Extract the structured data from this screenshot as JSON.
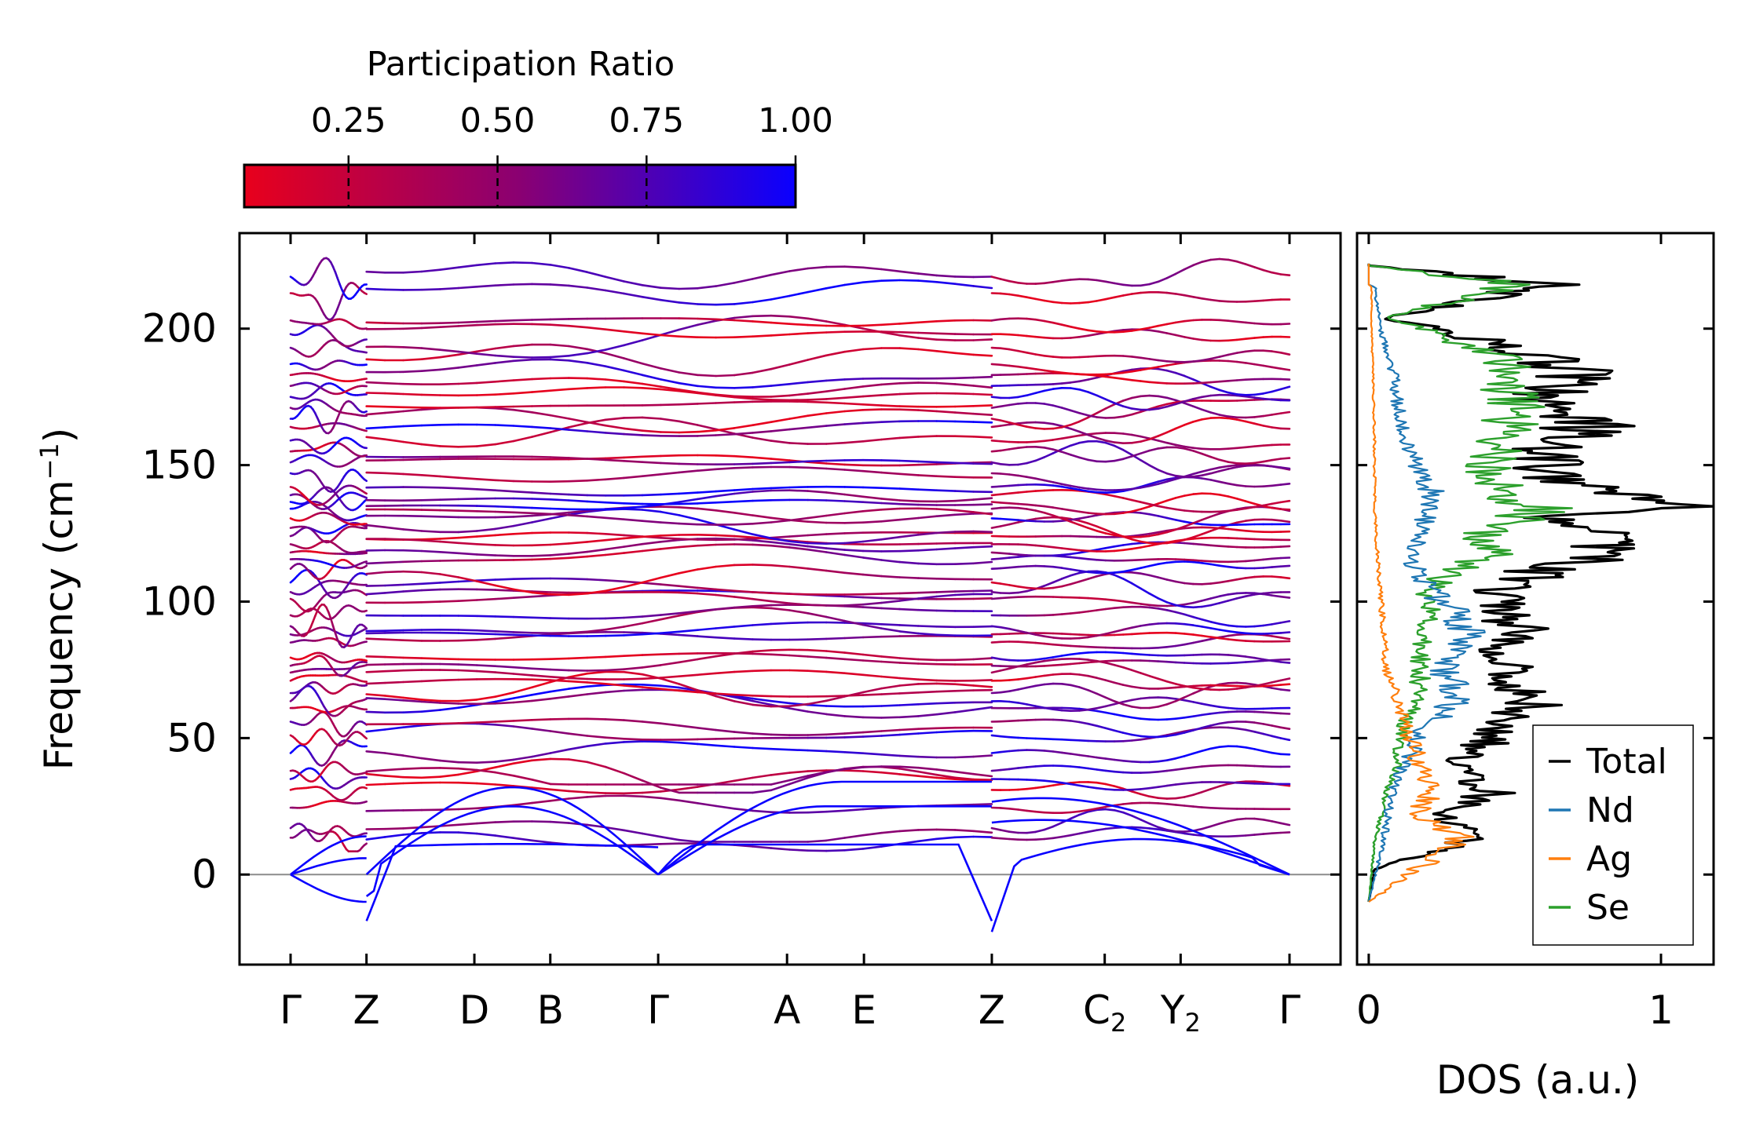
{
  "colorbar": {
    "title": "Participation Ratio",
    "ticks": [
      "0.25",
      "0.50",
      "0.75",
      "1.00"
    ],
    "tick_values": [
      0.25,
      0.5,
      0.75,
      1.0
    ],
    "range": [
      0.075,
      1.0
    ],
    "color_low": "#e8001c",
    "color_mid": "#8a0072",
    "color_high": "#0a00ff"
  },
  "chart_data": [
    {
      "type": "line",
      "subtype": "phonon-band-structure",
      "title": "",
      "ylabel": "Frequency (cm",
      "ylabel_sup": "−1",
      "ylabel_close": ")",
      "ylim": [
        -33,
        235
      ],
      "yticks": [
        0,
        50,
        100,
        150,
        200
      ],
      "ytick_labels": [
        "0",
        "50",
        "100",
        "150",
        "200"
      ],
      "zero_line": 0,
      "kpath_labels": [
        "Γ",
        "Z",
        "D",
        "B",
        "Γ",
        "A",
        "E",
        "Z",
        "C",
        "Y",
        "Γ"
      ],
      "kpath_subscripts": [
        "",
        "",
        "",
        "",
        "",
        "",
        "",
        "",
        "2",
        "2",
        ""
      ],
      "kpath_positions": [
        0,
        0.76,
        1.84,
        2.6,
        3.68,
        4.97,
        5.74,
        7.02,
        8.15,
        8.91,
        10.0
      ],
      "segments": [
        [
          0,
          0.76
        ],
        [
          0.76,
          7.02
        ],
        [
          7.02,
          10.0
        ]
      ],
      "bands_at_gamma": [
        0,
        0,
        0,
        13.5,
        17,
        24.5,
        31,
        35,
        38,
        44.5,
        51,
        56,
        61,
        63.5,
        66.5,
        71,
        74,
        76.5,
        79.5,
        85,
        88,
        91,
        95,
        101,
        103.5,
        107,
        112,
        115.5,
        118,
        121,
        124,
        127,
        130.5,
        134,
        136.5,
        139,
        142,
        147,
        151,
        155,
        159,
        164,
        167,
        171,
        175,
        179,
        183,
        187,
        193,
        198,
        203,
        213,
        219
      ],
      "acoustic_branches": {
        "gamma_z": [
          -10,
          6,
          14
        ],
        "z_gamma2": [
          -17,
          9,
          5
        ]
      }
    },
    {
      "type": "line",
      "subtype": "density-of-states",
      "xlabel": "DOS (a.u.)",
      "xlim": [
        -0.04,
        1.18
      ],
      "xticks": [
        0,
        1
      ],
      "xtick_labels": [
        "0",
        "1"
      ],
      "ylim": [
        -33,
        235
      ],
      "legend_position": "lower-right",
      "series": [
        {
          "name": "Total",
          "color": "#000000",
          "peaks": [
            [
              -10,
              0.0
            ],
            [
              2,
              0.02
            ],
            [
              12,
              0.32
            ],
            [
              14,
              0.34
            ],
            [
              22,
              0.25
            ],
            [
              30,
              0.42
            ],
            [
              40,
              0.3
            ],
            [
              47,
              0.38
            ],
            [
              55,
              0.48
            ],
            [
              63,
              0.58
            ],
            [
              70,
              0.44
            ],
            [
              76,
              0.48
            ],
            [
              83,
              0.44
            ],
            [
              90,
              0.52
            ],
            [
              97,
              0.44
            ],
            [
              104,
              0.46
            ],
            [
              112,
              0.6
            ],
            [
              118,
              0.82
            ],
            [
              124,
              0.78
            ],
            [
              132,
              0.62
            ],
            [
              134,
              1.12
            ],
            [
              140,
              0.8
            ],
            [
              146,
              0.62
            ],
            [
              155,
              0.6
            ],
            [
              163,
              0.72
            ],
            [
              166,
              0.8
            ],
            [
              172,
              0.58
            ],
            [
              182,
              0.68
            ],
            [
              185,
              0.72
            ],
            [
              192,
              0.5
            ],
            [
              198,
              0.32
            ],
            [
              204,
              0.05
            ],
            [
              216,
              0.64
            ],
            [
              223,
              0.02
            ]
          ]
        },
        {
          "name": "Nd",
          "color": "#1f77b4",
          "peaks": [
            [
              -10,
              0.0
            ],
            [
              12,
              0.05
            ],
            [
              30,
              0.08
            ],
            [
              40,
              0.12
            ],
            [
              55,
              0.2
            ],
            [
              64,
              0.32
            ],
            [
              75,
              0.26
            ],
            [
              90,
              0.34
            ],
            [
              104,
              0.22
            ],
            [
              116,
              0.14
            ],
            [
              128,
              0.18
            ],
            [
              140,
              0.22
            ],
            [
              150,
              0.16
            ],
            [
              160,
              0.12
            ],
            [
              172,
              0.1
            ],
            [
              186,
              0.08
            ],
            [
              200,
              0.04
            ],
            [
              216,
              0.02
            ]
          ]
        },
        {
          "name": "Ag",
          "color": "#ff7f0e",
          "peaks": [
            [
              -10,
              0.0
            ],
            [
              12,
              0.3
            ],
            [
              14,
              0.32
            ],
            [
              22,
              0.16
            ],
            [
              30,
              0.22
            ],
            [
              40,
              0.18
            ],
            [
              55,
              0.12
            ],
            [
              64,
              0.1
            ],
            [
              75,
              0.06
            ],
            [
              90,
              0.05
            ],
            [
              104,
              0.04
            ],
            [
              118,
              0.03
            ],
            [
              134,
              0.02
            ],
            [
              160,
              0.02
            ],
            [
              200,
              0.01
            ],
            [
              216,
              0.01
            ]
          ]
        },
        {
          "name": "Se",
          "color": "#2ca02c",
          "peaks": [
            [
              -10,
              0.0
            ],
            [
              12,
              0.02
            ],
            [
              30,
              0.06
            ],
            [
              40,
              0.1
            ],
            [
              55,
              0.12
            ],
            [
              64,
              0.16
            ],
            [
              76,
              0.18
            ],
            [
              90,
              0.2
            ],
            [
              104,
              0.2
            ],
            [
              112,
              0.3
            ],
            [
              118,
              0.44
            ],
            [
              124,
              0.38
            ],
            [
              134,
              0.58
            ],
            [
              140,
              0.44
            ],
            [
              150,
              0.42
            ],
            [
              160,
              0.46
            ],
            [
              166,
              0.48
            ],
            [
              172,
              0.52
            ],
            [
              180,
              0.48
            ],
            [
              186,
              0.5
            ],
            [
              196,
              0.3
            ],
            [
              204,
              0.05
            ],
            [
              216,
              0.52
            ],
            [
              223,
              0.02
            ]
          ]
        }
      ]
    }
  ]
}
